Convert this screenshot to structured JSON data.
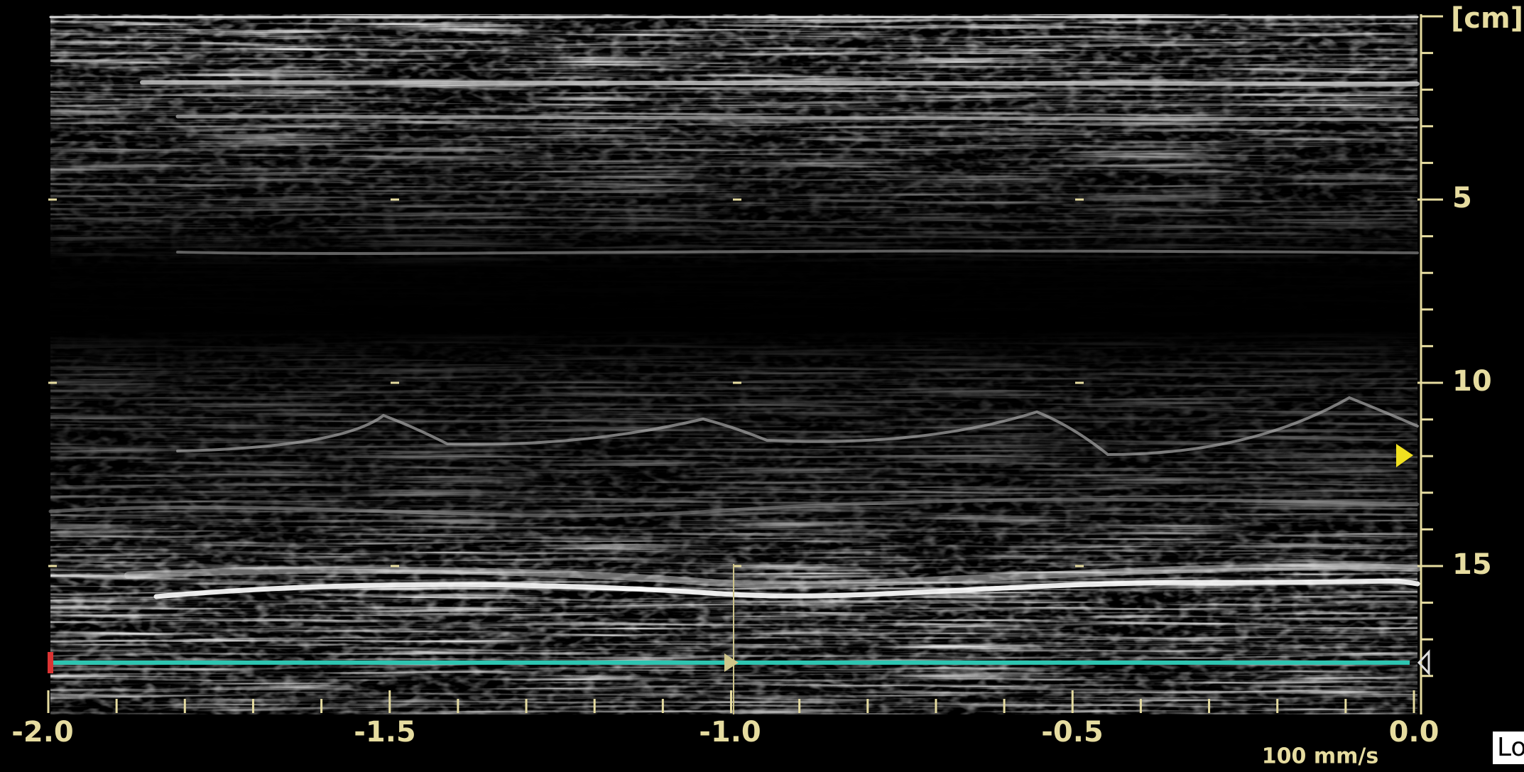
{
  "depth_axis": {
    "unit": "[cm]",
    "labels": [
      "5",
      "10",
      "15"
    ]
  },
  "time_axis": {
    "labels": [
      "-2.0",
      "-1.5",
      "-1.0",
      "-0.5",
      "0.0"
    ]
  },
  "sweep_speed": "100 mm/s",
  "corner_label": "Lo"
}
